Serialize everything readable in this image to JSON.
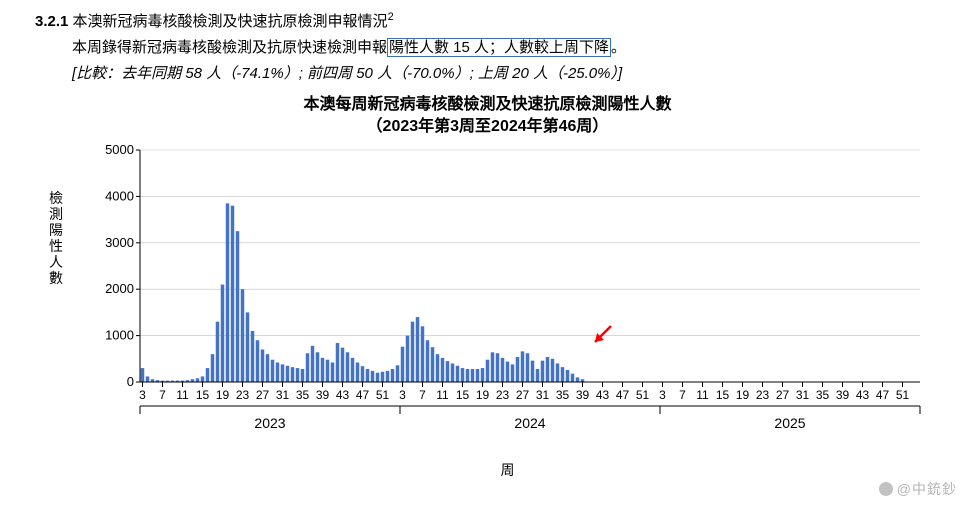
{
  "section": {
    "number": "3.2.1",
    "title": "本澳新冠病毒核酸檢測及快速抗原檢測申報情況",
    "footnote_mark": "2"
  },
  "line2": {
    "prefix": "本周錄得新冠病毒核酸檢測及抗原快速檢測申報",
    "boxed": "陽性人數 15 人；人數較上周下降",
    "suffix": "。"
  },
  "line3": "[比較：去年同期 58 人（-74.1%）; 前四周 50 人（-70.0%）; 上周 20 人（-25.0%）]",
  "chart": {
    "title1": "本澳每周新冠病毒核酸檢測及快速抗原檢測陽性人數",
    "title2": "（2023年第3周至2024年第46周）",
    "ylabel": "檢測陽性人數",
    "xlabel": "周",
    "bar_color": "#4472c4",
    "grid_color": "#bfbfbf",
    "axis_color": "#000000",
    "ylim": [
      0,
      5000
    ],
    "ytick_step": 1000,
    "yticks": [
      0,
      1000,
      2000,
      3000,
      4000,
      5000
    ],
    "xtick_labels": [
      "3",
      "7",
      "11",
      "15",
      "19",
      "23",
      "27",
      "31",
      "35",
      "39",
      "43",
      "47",
      "51",
      "3",
      "7",
      "11",
      "15",
      "19",
      "23",
      "27",
      "31",
      "35",
      "39",
      "43",
      "47",
      "51",
      "3",
      "7",
      "11",
      "15",
      "19",
      "23",
      "27",
      "31",
      "35",
      "39",
      "43",
      "47",
      "51"
    ],
    "years": [
      "2023",
      "2024",
      "2025"
    ],
    "arrow_color": "#ff0000",
    "values": [
      300,
      120,
      60,
      40,
      30,
      30,
      30,
      30,
      30,
      40,
      60,
      80,
      120,
      300,
      600,
      1300,
      2100,
      3850,
      3800,
      3250,
      2000,
      1500,
      1100,
      900,
      700,
      600,
      480,
      420,
      380,
      350,
      320,
      300,
      280,
      620,
      780,
      640,
      520,
      480,
      420,
      840,
      740,
      640,
      520,
      420,
      340,
      280,
      240,
      200,
      220,
      240,
      280,
      360,
      760,
      1000,
      1300,
      1400,
      1200,
      900,
      750,
      600,
      520,
      450,
      400,
      350,
      300,
      280,
      280,
      280,
      300,
      480,
      640,
      620,
      520,
      440,
      380,
      540,
      660,
      620,
      460,
      280,
      460,
      540,
      500,
      400,
      320,
      260,
      180,
      100,
      60
    ]
  },
  "watermark": "@中銃鈔"
}
